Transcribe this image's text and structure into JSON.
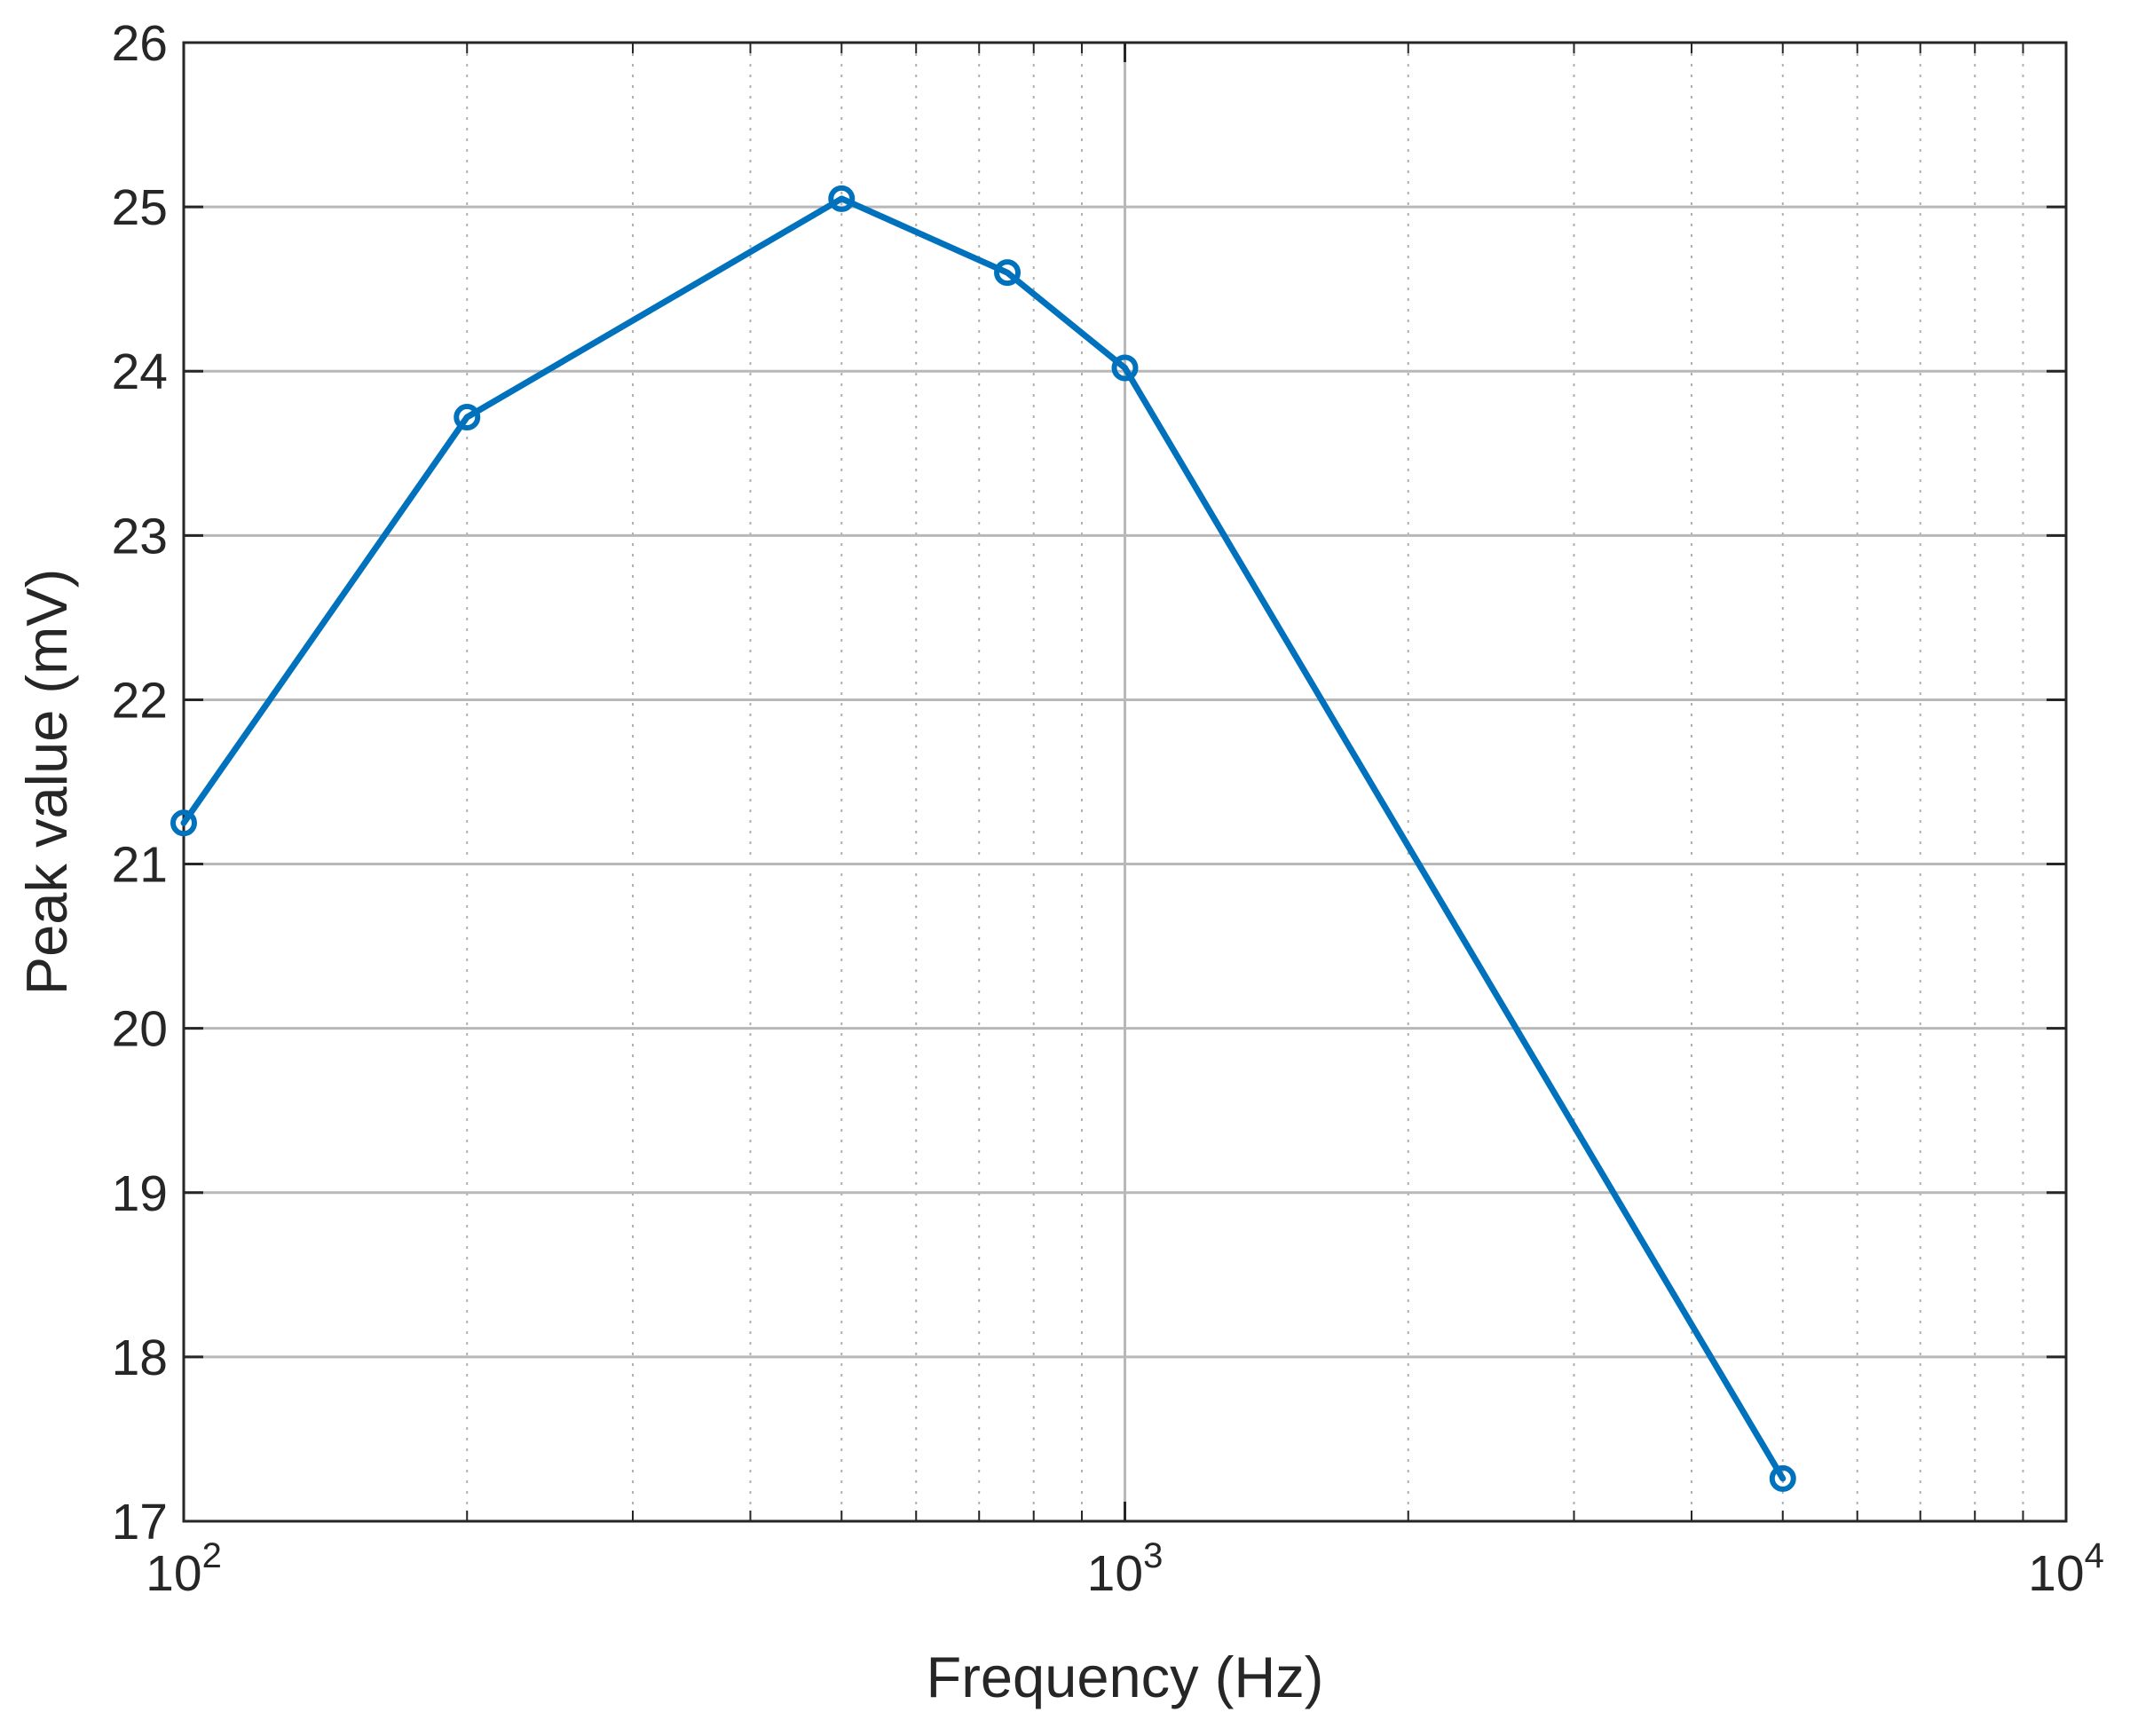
{
  "chart_data": {
    "type": "line",
    "x_scale": "log",
    "y_scale": "linear",
    "xlabel": "Frequency (Hz)",
    "ylabel": "Peak value (mV)",
    "xlim": [
      100,
      10000
    ],
    "ylim": [
      17,
      26
    ],
    "x_tick_labels": [
      {
        "base": "10",
        "exp": "2",
        "value": 100
      },
      {
        "base": "10",
        "exp": "3",
        "value": 1000
      },
      {
        "base": "10",
        "exp": "4",
        "value": 10000
      }
    ],
    "y_tick_labels": [
      "17",
      "18",
      "19",
      "20",
      "21",
      "22",
      "23",
      "24",
      "25",
      "26"
    ],
    "grid": true,
    "minor_grid": true,
    "line_color": "#0072BD",
    "marker": "circle",
    "series": [
      {
        "x": [
          100,
          200,
          500,
          750,
          1000,
          5000
        ],
        "y": [
          21.25,
          23.72,
          25.05,
          24.6,
          24.02,
          17.26
        ]
      }
    ]
  }
}
